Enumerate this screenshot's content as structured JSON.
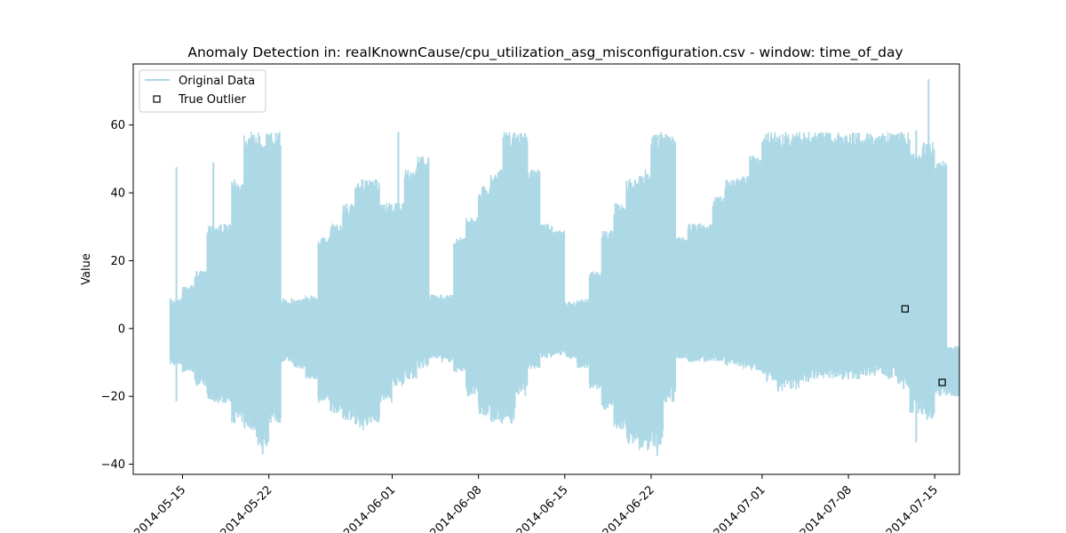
{
  "chart_data": {
    "type": "line",
    "title": "Anomaly Detection in: realKnownCause/cpu_utilization_asg_misconfiguration.csv - window: time_of_day",
    "xlabel": "",
    "ylabel": "Value",
    "xlim": [
      "2014-05-11",
      "2014-07-17"
    ],
    "ylim": [
      -43,
      78
    ],
    "x_ticks": [
      "2014-05-15",
      "2014-05-22",
      "2014-06-01",
      "2014-06-08",
      "2014-06-15",
      "2014-06-22",
      "2014-07-01",
      "2014-07-08",
      "2014-07-15"
    ],
    "y_ticks": [
      -40,
      -20,
      0,
      20,
      40,
      60
    ],
    "grid": false,
    "legend_position": "top-left",
    "series": [
      {
        "name": "Original Data",
        "style": "line",
        "color": "#add8e6",
        "band": {
          "x": [
            "2014-05-14",
            "2014-05-15",
            "2014-05-16",
            "2014-05-17",
            "2014-05-18",
            "2014-05-19",
            "2014-05-20",
            "2014-05-21",
            "2014-05-22",
            "2014-05-23",
            "2014-05-24",
            "2014-05-25",
            "2014-05-26",
            "2014-05-27",
            "2014-05-28",
            "2014-05-29",
            "2014-05-30",
            "2014-05-31",
            "2014-06-01",
            "2014-06-02",
            "2014-06-03",
            "2014-06-04",
            "2014-06-05",
            "2014-06-06",
            "2014-06-07",
            "2014-06-08",
            "2014-06-09",
            "2014-06-10",
            "2014-06-11",
            "2014-06-12",
            "2014-06-13",
            "2014-06-14",
            "2014-06-15",
            "2014-06-16",
            "2014-06-17",
            "2014-06-18",
            "2014-06-19",
            "2014-06-20",
            "2014-06-21",
            "2014-06-22",
            "2014-06-23",
            "2014-06-24",
            "2014-06-25",
            "2014-06-26",
            "2014-06-27",
            "2014-06-28",
            "2014-06-29",
            "2014-06-30",
            "2014-07-01",
            "2014-07-02",
            "2014-07-03",
            "2014-07-04",
            "2014-07-05",
            "2014-07-06",
            "2014-07-07",
            "2014-07-08",
            "2014-07-09",
            "2014-07-10",
            "2014-07-11",
            "2014-07-12",
            "2014-07-13",
            "2014-07-14",
            "2014-07-15",
            "2014-07-16"
          ],
          "upper": [
            9,
            13,
            17,
            31,
            31,
            44,
            58,
            58,
            58,
            9,
            9,
            10,
            27,
            31,
            37,
            44,
            44,
            37,
            37,
            47,
            51,
            10,
            10,
            27,
            33,
            42,
            47,
            58,
            58,
            47,
            31,
            29,
            8,
            9,
            17,
            29,
            37,
            44,
            47,
            58,
            58,
            27,
            31,
            31,
            39,
            44,
            45,
            51,
            58,
            58,
            58,
            58,
            58,
            58,
            58,
            58,
            58,
            58,
            58,
            58,
            52,
            55,
            50,
            -5
          ],
          "lower": [
            -11,
            -13,
            -17,
            -22,
            -22,
            -28,
            -30,
            -35,
            -28,
            -10,
            -12,
            -15,
            -22,
            -25,
            -27,
            -30,
            -28,
            -22,
            -17,
            -15,
            -12,
            -9,
            -10,
            -13,
            -20,
            -26,
            -28,
            -28,
            -20,
            -12,
            -9,
            -8,
            -9,
            -12,
            -18,
            -24,
            -30,
            -34,
            -36,
            -35,
            -22,
            -9,
            -10,
            -10,
            -10,
            -11,
            -12,
            -13,
            -16,
            -19,
            -18,
            -16,
            -15,
            -15,
            -15,
            -15,
            -14,
            -14,
            -15,
            -18,
            -25,
            -27,
            -20,
            -20
          ]
        },
        "peaks": [
          {
            "x": "2014-05-14",
            "y": 47.6
          },
          {
            "x": "2014-05-17",
            "y": 49
          },
          {
            "x": "2014-06-01",
            "y": 58
          },
          {
            "x": "2014-07-13",
            "y": 58.5
          },
          {
            "x": "2014-07-14",
            "y": 73.5
          }
        ],
        "troughs": [
          {
            "x": "2014-05-14",
            "y": -21.5
          },
          {
            "x": "2014-05-21",
            "y": -37
          },
          {
            "x": "2014-06-22",
            "y": -37.5
          },
          {
            "x": "2014-07-13",
            "y": -33.5
          }
        ]
      },
      {
        "name": "True Outlier",
        "style": "marker",
        "marker": "square",
        "points": [
          {
            "x": "2014-07-12",
            "y": 5.8
          },
          {
            "x": "2014-07-15",
            "y": -15.9
          }
        ]
      }
    ]
  }
}
